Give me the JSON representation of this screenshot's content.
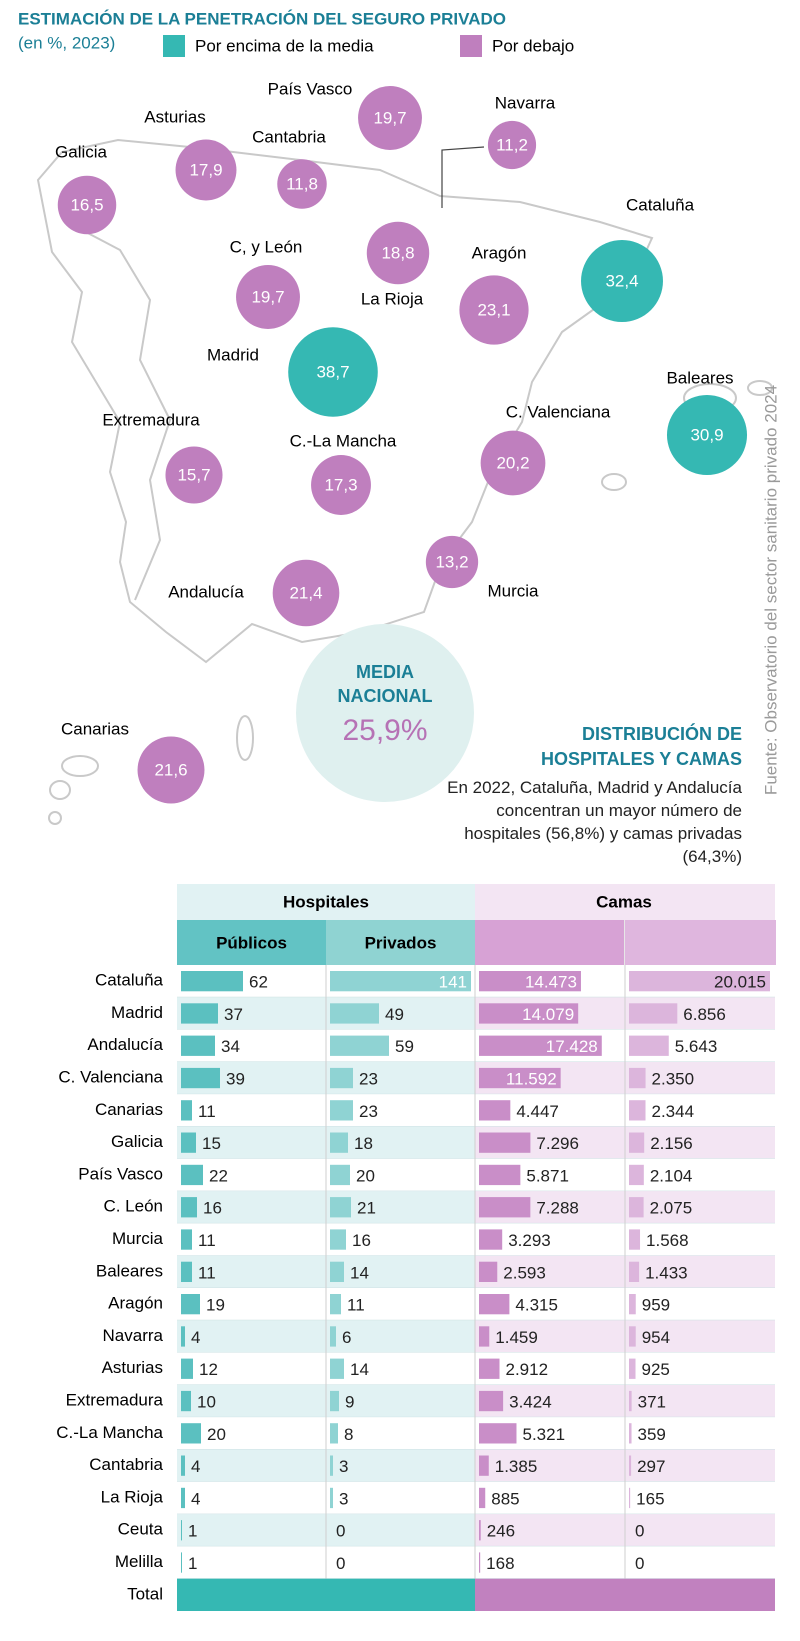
{
  "chart_data": [
    {
      "type": "bubble",
      "title": "ESTIMACIÓN DE LA PENETRACIÓN DEL SEGURO PRIVADO",
      "subtitle": "(en %, 2023)",
      "legend": [
        {
          "name": "Por encima de la media",
          "color": "#35b8b3"
        },
        {
          "name": "Por debajo",
          "color": "#bf7fbe"
        }
      ],
      "categories": [
        "Galicia",
        "Asturias",
        "Cantabria",
        "País Vasco",
        "Navarra",
        "C, y León",
        "La Rioja",
        "Aragón",
        "Cataluña",
        "Madrid",
        "Baleares",
        "Extremadura",
        "C.-La Mancha",
        "C. Valenciana",
        "Murcia",
        "Andalucía",
        "Canarias"
      ],
      "values": [
        16.5,
        17.9,
        11.8,
        19.7,
        11.2,
        19.7,
        18.8,
        23.1,
        32.4,
        38.7,
        30.9,
        15.7,
        17.3,
        20.2,
        13.2,
        21.4,
        21.6
      ],
      "value_labels": [
        "16,5",
        "17,9",
        "11,8",
        "19,7",
        "11,2",
        "19,7",
        "18,8",
        "23,1",
        "32,4",
        "38,7",
        "30,9",
        "15,7",
        "17,3",
        "20,2",
        "13,2",
        "21,4",
        "21,6"
      ],
      "mean": {
        "label": "MEDIA NACIONAL",
        "value": 25.9,
        "value_label": "25,9%"
      },
      "source": "Fuente: Observatorio del sector sanitario privado 2024"
    },
    {
      "type": "table",
      "title": "DISTRIBUCIÓN DE HOSPITALES Y CAMAS",
      "note": "En 2022, Cataluña, Madrid y Andalucía concentran un mayor número de hospitales (56,8%) y camas privadas (64,3%)",
      "categories": [
        "Cataluña",
        "Madrid",
        "Andalucía",
        "C. Valenciana",
        "Canarias",
        "Galicia",
        "País Vasco",
        "C. León",
        "Murcia",
        "Baleares",
        "Aragón",
        "Navarra",
        "Asturias",
        "Extremadura",
        "C.-La Mancha",
        "Cantabria",
        "La Rioja",
        "Ceuta",
        "Melilla"
      ],
      "total_label": "Total",
      "groups": [
        {
          "name": "Hospitales",
          "series": [
            {
              "name": "Públicos",
              "color": "#5bc0c0",
              "values": [
                62,
                37,
                34,
                39,
                11,
                15,
                22,
                16,
                11,
                11,
                19,
                4,
                12,
                10,
                20,
                4,
                4,
                1,
                1
              ]
            },
            {
              "name": "Privados",
              "color": "#8fd3d3",
              "values": [
                141,
                49,
                59,
                23,
                23,
                18,
                20,
                21,
                16,
                14,
                11,
                6,
                14,
                9,
                8,
                3,
                3,
                0,
                0
              ]
            }
          ]
        },
        {
          "name": "Camas",
          "series": [
            {
              "color": "#c98ec8",
              "values": [
                14473,
                14079,
                17428,
                11592,
                4447,
                7296,
                5871,
                7288,
                3293,
                2593,
                4315,
                1459,
                2912,
                3424,
                5321,
                1385,
                885,
                246,
                168
              ],
              "value_labels": [
                "14.473",
                "14.079",
                "17.428",
                "11.592",
                "4.447",
                "7.296",
                "5.871",
                "7.288",
                "3.293",
                "2.593",
                "4.315",
                "1.459",
                "2.912",
                "3.424",
                "5.321",
                "1.385",
                "885",
                "246",
                "168"
              ]
            },
            {
              "color": "#dcb5dc",
              "values": [
                20015,
                6856,
                5643,
                2350,
                2344,
                2156,
                2104,
                2075,
                1568,
                1433,
                959,
                954,
                925,
                371,
                359,
                297,
                165,
                0,
                0
              ],
              "value_labels": [
                "20.015",
                "6.856",
                "5.643",
                "2.350",
                "2.344",
                "2.156",
                "2.104",
                "2.075",
                "1.568",
                "1.433",
                "959",
                "954",
                "925",
                "371",
                "359",
                "297",
                "165",
                "0",
                "0"
              ]
            }
          ]
        }
      ]
    }
  ]
}
